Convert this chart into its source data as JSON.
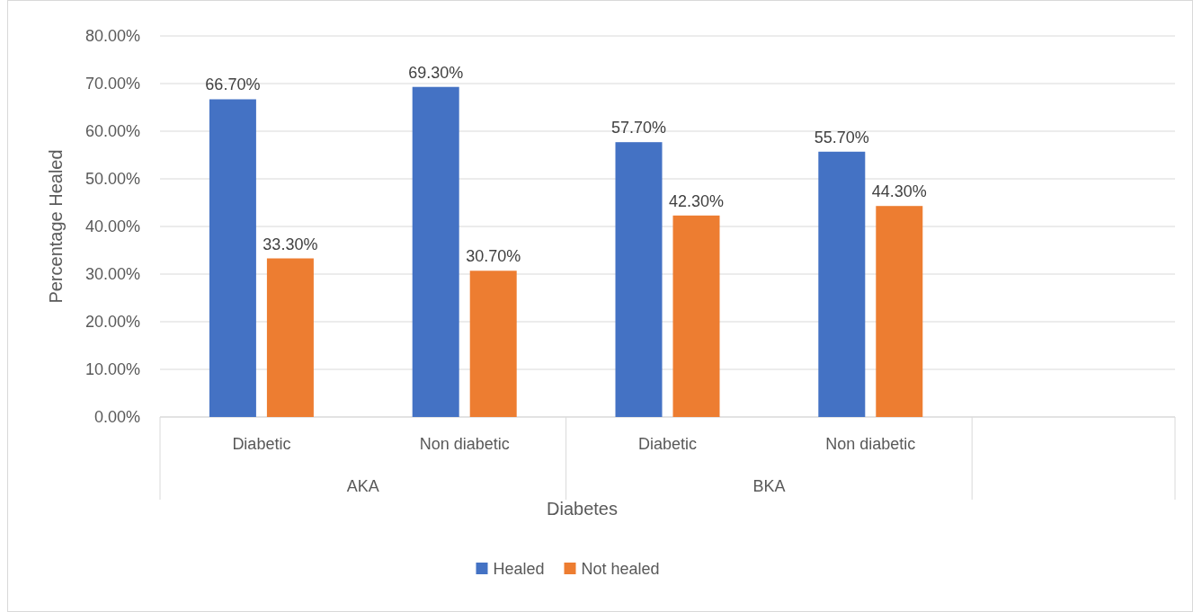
{
  "chart_data": {
    "type": "bar",
    "xlabel": "Diabetes",
    "ylabel": "Percentage Healed",
    "categories": [
      "Diabetic",
      "Non diabetic",
      "Diabetic",
      "Non diabetic",
      null
    ],
    "annotations": [
      "AKA",
      "BKA"
    ],
    "series": [
      {
        "name": "Healed",
        "color": "#4472c4",
        "values": [
          66.7,
          69.3,
          57.7,
          55.7,
          null
        ],
        "value_labels": [
          "66.70%",
          "69.30%",
          "57.70%",
          "55.70%",
          null
        ]
      },
      {
        "name": "Not healed",
        "color": "#ed7d31",
        "values": [
          33.3,
          30.7,
          42.3,
          44.3,
          null
        ],
        "value_labels": [
          "33.30%",
          "30.70%",
          "42.30%",
          "44.30%",
          null
        ]
      }
    ],
    "ylim": [
      0,
      80
    ],
    "yticks": [
      {
        "value": 0,
        "label": "0.00%"
      },
      {
        "value": 10,
        "label": "10.00%"
      },
      {
        "value": 20,
        "label": "20.00%"
      },
      {
        "value": 30,
        "label": "30.00%"
      },
      {
        "value": 40,
        "label": "40.00%"
      },
      {
        "value": 50,
        "label": "50.00%"
      },
      {
        "value": 60,
        "label": "60.00%"
      },
      {
        "value": 70,
        "label": "70.00%"
      },
      {
        "value": 80,
        "label": "80.00%"
      }
    ],
    "grid": "y",
    "legend": "bottom"
  }
}
